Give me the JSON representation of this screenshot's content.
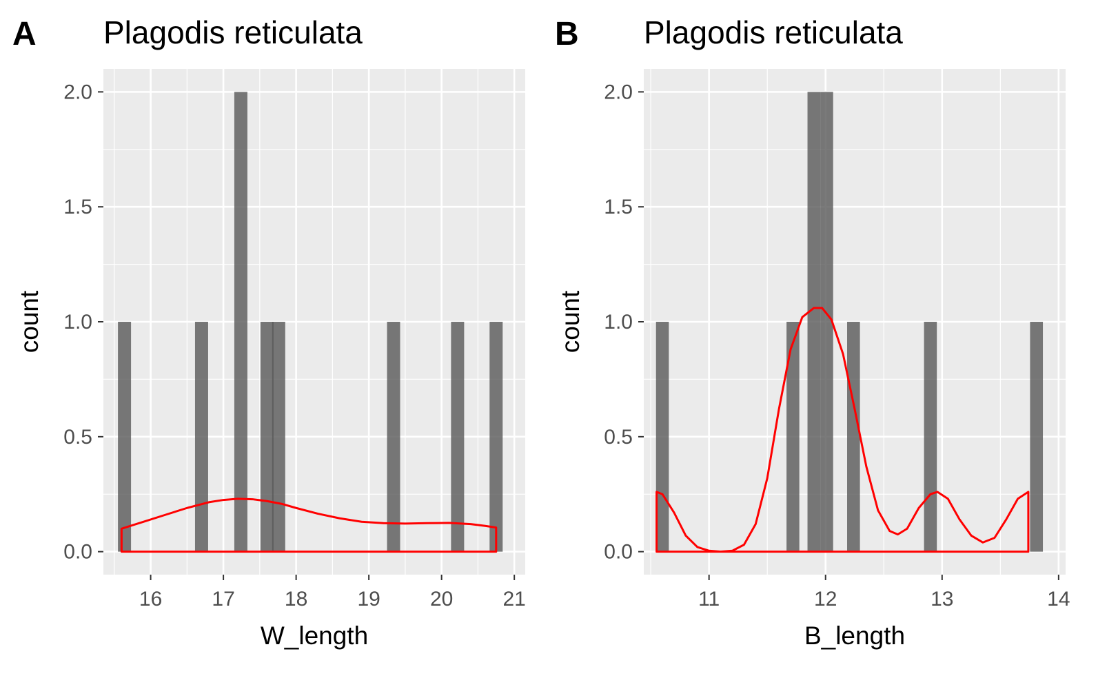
{
  "chart_data": [
    {
      "type": "bar",
      "tag": "A",
      "title": "Plagodis reticulata",
      "xlabel": "W_length",
      "ylabel": "count",
      "xlim": [
        15.35,
        21.15
      ],
      "ylim": [
        -0.1,
        2.1
      ],
      "xticks": [
        16,
        17,
        18,
        19,
        20,
        21
      ],
      "yticks": [
        0.0,
        0.5,
        1.0,
        1.5,
        2.0
      ],
      "xtick_labels": [
        "16",
        "17",
        "18",
        "19",
        "20",
        "21"
      ],
      "ytick_labels": [
        "0.0",
        "0.5",
        "1.0",
        "1.5",
        "2.0"
      ],
      "grid": true,
      "bar_color": "#595959",
      "density_color": "#ff0000",
      "bin_width": 0.18,
      "bars": [
        {
          "x": 15.64,
          "count": 1
        },
        {
          "x": 16.7,
          "count": 1
        },
        {
          "x": 17.24,
          "count": 2
        },
        {
          "x": 17.6,
          "count": 1
        },
        {
          "x": 17.76,
          "count": 1
        },
        {
          "x": 19.34,
          "count": 1
        },
        {
          "x": 20.22,
          "count": 1
        },
        {
          "x": 20.75,
          "count": 1
        }
      ],
      "density": {
        "x": [
          15.6,
          15.9,
          16.2,
          16.5,
          16.8,
          17.0,
          17.2,
          17.4,
          17.6,
          17.8,
          18.0,
          18.3,
          18.6,
          18.9,
          19.2,
          19.5,
          19.8,
          20.1,
          20.4,
          20.6,
          20.75
        ],
        "y": [
          0.1,
          0.13,
          0.16,
          0.19,
          0.215,
          0.225,
          0.23,
          0.228,
          0.22,
          0.208,
          0.19,
          0.165,
          0.145,
          0.13,
          0.124,
          0.122,
          0.124,
          0.125,
          0.12,
          0.112,
          0.105
        ]
      }
    },
    {
      "type": "bar",
      "tag": "B",
      "title": "Plagodis reticulata",
      "xlabel": "B_length",
      "ylabel": "count",
      "xlim": [
        10.44,
        14.06
      ],
      "ylim": [
        -0.1,
        2.1
      ],
      "xticks": [
        11,
        12,
        13,
        14
      ],
      "yticks": [
        0.0,
        0.5,
        1.0,
        1.5,
        2.0
      ],
      "xtick_labels": [
        "11",
        "12",
        "13",
        "14"
      ],
      "ytick_labels": [
        "0.0",
        "0.5",
        "1.0",
        "1.5",
        "2.0"
      ],
      "grid": true,
      "bar_color": "#595959",
      "density_color": "#ff0000",
      "bin_width": 0.11,
      "bars": [
        {
          "x": 10.6,
          "count": 1
        },
        {
          "x": 11.72,
          "count": 1
        },
        {
          "x": 11.9,
          "count": 2
        },
        {
          "x": 12.01,
          "count": 2
        },
        {
          "x": 12.24,
          "count": 1
        },
        {
          "x": 12.9,
          "count": 1
        },
        {
          "x": 13.81,
          "count": 1
        }
      ],
      "density": {
        "x": [
          10.55,
          10.6,
          10.7,
          10.8,
          10.9,
          11.0,
          11.1,
          11.2,
          11.3,
          11.4,
          11.5,
          11.6,
          11.7,
          11.8,
          11.9,
          11.97,
          12.05,
          12.15,
          12.25,
          12.35,
          12.45,
          12.55,
          12.62,
          12.7,
          12.8,
          12.9,
          12.96,
          13.05,
          13.15,
          13.25,
          13.35,
          13.45,
          13.55,
          13.65,
          13.74
        ],
        "y": [
          0.26,
          0.25,
          0.17,
          0.07,
          0.02,
          0.004,
          0.0,
          0.004,
          0.03,
          0.12,
          0.32,
          0.62,
          0.88,
          1.02,
          1.06,
          1.06,
          1.01,
          0.86,
          0.62,
          0.37,
          0.18,
          0.09,
          0.075,
          0.1,
          0.19,
          0.25,
          0.26,
          0.23,
          0.14,
          0.07,
          0.04,
          0.06,
          0.14,
          0.23,
          0.26
        ]
      }
    }
  ]
}
